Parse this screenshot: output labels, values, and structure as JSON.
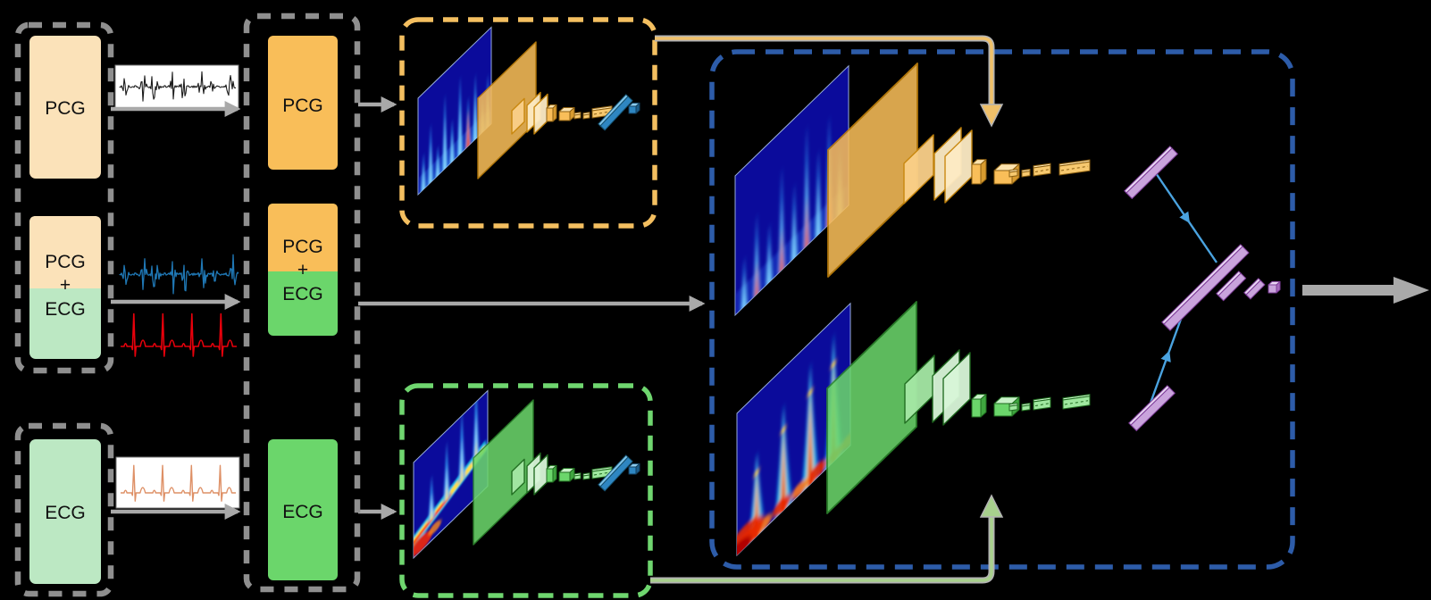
{
  "left_panel": {
    "pcg": "PCG",
    "pcg_ecg": [
      "PCG",
      "+",
      "ECG"
    ],
    "ecg": "ECG"
  },
  "middle_panel": {
    "pcg": "PCG",
    "pcg_ecg": [
      "PCG",
      "+",
      "ECG"
    ],
    "ecg": "ECG"
  },
  "colors": {
    "pale_orange": "#FBE2B9",
    "pale_green": "#BCE8C3",
    "orange": "#F9BE59",
    "green": "#6BD66B",
    "box_gray": "#8F8F8F",
    "arrow": "#A9A9A9",
    "orange_dash": "#F4BF60",
    "green_dash": "#6FD66F",
    "blue_dash": "#2D5CA9",
    "purple": "#C9A3DC",
    "purple_dark": "#7D3C98",
    "bar_blue": "#2E86C1",
    "wave_blue": "#1F77B4",
    "wave_red": "#E8000B",
    "wave_tan": "#DE9066",
    "scalogram_bg": "#0B0B9B",
    "transfer_orange": "#EFC069",
    "transfer_green": "#A8D08D"
  }
}
